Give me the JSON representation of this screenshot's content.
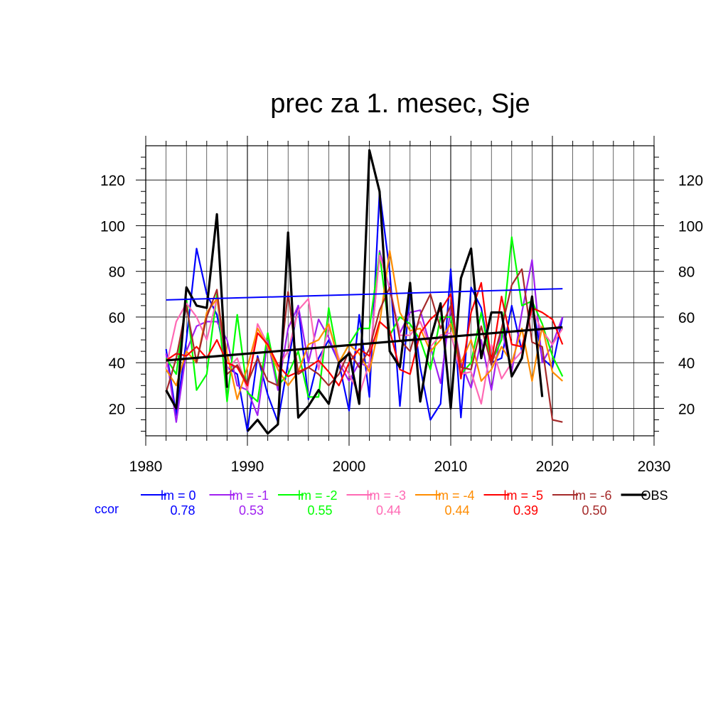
{
  "chart_data": {
    "type": "line",
    "title": "prec za 1. mesec, Sje",
    "xlabel": "",
    "ylabel": "",
    "xlim": [
      1980,
      2030
    ],
    "ylim": [
      8,
      135
    ],
    "x_ticks": [
      1980,
      1990,
      2000,
      2010,
      2020,
      2030
    ],
    "y_ticks": [
      20,
      40,
      60,
      80,
      100,
      120
    ],
    "grid": true,
    "legend_position": "bottom",
    "ccor_label": "ccor",
    "x": [
      1982,
      1983,
      1984,
      1985,
      1986,
      1987,
      1988,
      1989,
      1990,
      1991,
      1992,
      1993,
      1994,
      1995,
      1996,
      1997,
      1998,
      1999,
      2000,
      2001,
      2002,
      2003,
      2004,
      2005,
      2006,
      2007,
      2008,
      2009,
      2010,
      2011,
      2012,
      2013,
      2014,
      2015,
      2016,
      2017,
      2018,
      2019,
      2020,
      2021
    ],
    "series": [
      {
        "name": "lm = 0",
        "color": "#0000ff",
        "ccor": "0.78",
        "values": [
          46,
          17,
          50,
          90,
          70,
          61,
          38,
          35,
          10,
          43,
          26,
          14,
          40,
          65,
          24,
          42,
          50,
          40,
          19,
          61,
          25,
          115,
          80,
          21,
          71,
          38,
          15,
          22,
          81,
          16,
          73,
          64,
          40,
          42,
          65,
          45,
          66,
          42,
          38,
          60
        ],
        "trend": [
          67.5,
          72.4
        ]
      },
      {
        "name": "lm = -1",
        "color": "#a020f0",
        "ccor": "0.53",
        "values": [
          44,
          14,
          45,
          56,
          58,
          58,
          50,
          30,
          28,
          17,
          50,
          28,
          55,
          65,
          40,
          59,
          51,
          40,
          32,
          40,
          38,
          89,
          72,
          53,
          62,
          63,
          47,
          31,
          64,
          40,
          29,
          50,
          28,
          55,
          36,
          62,
          85,
          40,
          48,
          60
        ]
      },
      {
        "name": "lm = -2",
        "color": "#00ff00",
        "ccor": "0.55",
        "values": [
          42,
          35,
          68,
          28,
          35,
          70,
          23,
          61,
          27,
          23,
          53,
          30,
          35,
          45,
          25,
          25,
          64,
          40,
          48,
          55,
          55,
          88,
          52,
          60,
          57,
          50,
          37,
          60,
          60,
          35,
          40,
          62,
          40,
          50,
          95,
          65,
          67,
          57,
          43,
          34
        ]
      },
      {
        "name": "lm = -3",
        "color": "#ff69b4",
        "ccor": "0.44",
        "values": [
          38,
          58,
          66,
          60,
          50,
          68,
          37,
          42,
          28,
          57,
          48,
          38,
          45,
          63,
          68,
          37,
          56,
          42,
          35,
          26,
          40,
          87,
          73,
          52,
          52,
          58,
          47,
          52,
          53,
          35,
          36,
          22,
          48,
          33,
          40,
          45,
          63,
          54,
          48,
          55
        ]
      },
      {
        "name": "lm = -4",
        "color": "#ff8c00",
        "ccor": "0.44",
        "values": [
          37,
          30,
          45,
          40,
          62,
          68,
          44,
          24,
          38,
          55,
          47,
          37,
          30,
          36,
          48,
          50,
          57,
          40,
          48,
          44,
          36,
          57,
          89,
          62,
          54,
          55,
          45,
          50,
          57,
          40,
          50,
          32,
          37,
          47,
          40,
          55,
          32,
          56,
          36,
          32
        ]
      },
      {
        "name": "lm = -5",
        "color": "#ff0000",
        "ccor": "0.39",
        "values": [
          41,
          44,
          43,
          47,
          42,
          50,
          40,
          38,
          30,
          53,
          48,
          39,
          34,
          36,
          38,
          41,
          36,
          30,
          40,
          46,
          43,
          58,
          54,
          37,
          35,
          53,
          59,
          63,
          70,
          33,
          62,
          75,
          40,
          69,
          48,
          47,
          64,
          62,
          59,
          48
        ]
      },
      {
        "name": "lm = -6",
        "color": "#a52a2a",
        "ccor": "0.50",
        "values": [
          27,
          42,
          65,
          40,
          60,
          72,
          35,
          39,
          31,
          42,
          32,
          30,
          71,
          35,
          38,
          35,
          30,
          35,
          45,
          38,
          46,
          63,
          73,
          50,
          45,
          61,
          70,
          55,
          65,
          38,
          37,
          56,
          39,
          55,
          74,
          81,
          49,
          47,
          15,
          14
        ]
      },
      {
        "name": "OBS",
        "color": "#000000",
        "ccor": "",
        "values": [
          28,
          20,
          73,
          65,
          64,
          105,
          29,
          null,
          10,
          15,
          9,
          13,
          97,
          16,
          21,
          28,
          22,
          40,
          44,
          22,
          133,
          115,
          45,
          38,
          75,
          23,
          50,
          66,
          20,
          77,
          90,
          42,
          62,
          62,
          34,
          42,
          69,
          25,
          null,
          null
        ],
        "trend": [
          41,
          55.5
        ]
      }
    ]
  }
}
